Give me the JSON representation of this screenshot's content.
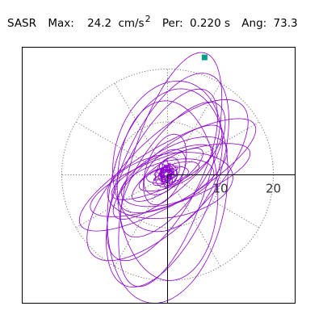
{
  "header": {
    "station": "SASR",
    "max_label": "Max:",
    "max_value": "24.2",
    "max_unit": "cm/s",
    "max_unit_exp": "2",
    "per_label": "Per:",
    "per_value": "0.220 s",
    "ang_label": "Ang:",
    "ang_value": "73.3"
  },
  "colors": {
    "trace": "#8b00cc",
    "marker": "#009f8a",
    "grid": "#777777",
    "axis": "#000000",
    "tick_label": "#333333"
  },
  "chart_data": {
    "type": "scatter",
    "subtype": "polar-particle-motion",
    "r_ticks": [
      10,
      20
    ],
    "tick_labels": [
      "10",
      "20"
    ],
    "angle_grid_deg": [
      0,
      30,
      60,
      90,
      120,
      150,
      180,
      210,
      240,
      270,
      300,
      330
    ],
    "r_max": 20,
    "grid": true,
    "max_point": {
      "x": 7.0,
      "y": 22.2
    },
    "orbit_loops": [
      {
        "a": 23.0,
        "b": 7.5,
        "angle": 73.3,
        "x0": 0.5,
        "y0": 1.0
      },
      {
        "a": 21.5,
        "b": 9.0,
        "angle": 68.0,
        "x0": 0.0,
        "y0": -1.0
      },
      {
        "a": 20.5,
        "b": 11.0,
        "angle": 80.0,
        "x0": 0.0,
        "y0": -4.0
      },
      {
        "a": 18.0,
        "b": 7.0,
        "angle": 62.0,
        "x0": -1.0,
        "y0": 0.0
      },
      {
        "a": 17.0,
        "b": 9.5,
        "angle": 92.0,
        "x0": 0.0,
        "y0": -3.0
      },
      {
        "a": 15.0,
        "b": 6.0,
        "angle": 55.0,
        "x0": 1.0,
        "y0": 1.0
      },
      {
        "a": 14.5,
        "b": 10.0,
        "angle": 75.0,
        "x0": 0.0,
        "y0": 3.5
      },
      {
        "a": 13.0,
        "b": 4.0,
        "angle": 40.0,
        "x0": 0.0,
        "y0": 0.5
      },
      {
        "a": 11.5,
        "b": 5.0,
        "angle": 30.0,
        "x0": 1.0,
        "y0": 0.0
      },
      {
        "a": 10.5,
        "b": 3.0,
        "angle": 25.0,
        "x0": -1.0,
        "y0": 0.5
      },
      {
        "a": 9.0,
        "b": 4.0,
        "angle": 15.0,
        "x0": 0.0,
        "y0": -1.5
      },
      {
        "a": 12.0,
        "b": 6.0,
        "angle": 10.0,
        "x0": 0.5,
        "y0": -2.0
      },
      {
        "a": 8.0,
        "b": 2.5,
        "angle": 35.0,
        "x0": 0.0,
        "y0": 0.0
      },
      {
        "a": 7.0,
        "b": 3.5,
        "angle": 70.0,
        "x0": -0.5,
        "y0": 1.0
      },
      {
        "a": 6.0,
        "b": 2.0,
        "angle": 20.0,
        "x0": 0.3,
        "y0": -0.3
      },
      {
        "a": 5.0,
        "b": 3.0,
        "angle": 50.0,
        "x0": -0.5,
        "y0": 0.5
      },
      {
        "a": 4.0,
        "b": 1.5,
        "angle": 10.0,
        "x0": 0.0,
        "y0": 0.0
      },
      {
        "a": 3.0,
        "b": 2.0,
        "angle": 60.0,
        "x0": 0.0,
        "y0": 0.5
      },
      {
        "a": 2.5,
        "b": 1.0,
        "angle": 30.0,
        "x0": -0.5,
        "y0": -0.5
      },
      {
        "a": 2.0,
        "b": 1.5,
        "angle": 80.0,
        "x0": 0.3,
        "y0": 0.0
      },
      {
        "a": 1.5,
        "b": 0.8,
        "angle": 40.0,
        "x0": 0.0,
        "y0": -0.3
      },
      {
        "a": 1.2,
        "b": 0.6,
        "angle": 0.0,
        "x0": -0.3,
        "y0": 0.3
      },
      {
        "a": 16.0,
        "b": 4.5,
        "angle": 20.0,
        "x0": 0.5,
        "y0": -1.0
      },
      {
        "a": 19.0,
        "b": 5.5,
        "angle": 30.0,
        "x0": 0.0,
        "y0": 0.0
      },
      {
        "a": 20.0,
        "b": 8.0,
        "angle": 45.0,
        "x0": 0.0,
        "y0": -1.0
      }
    ]
  }
}
